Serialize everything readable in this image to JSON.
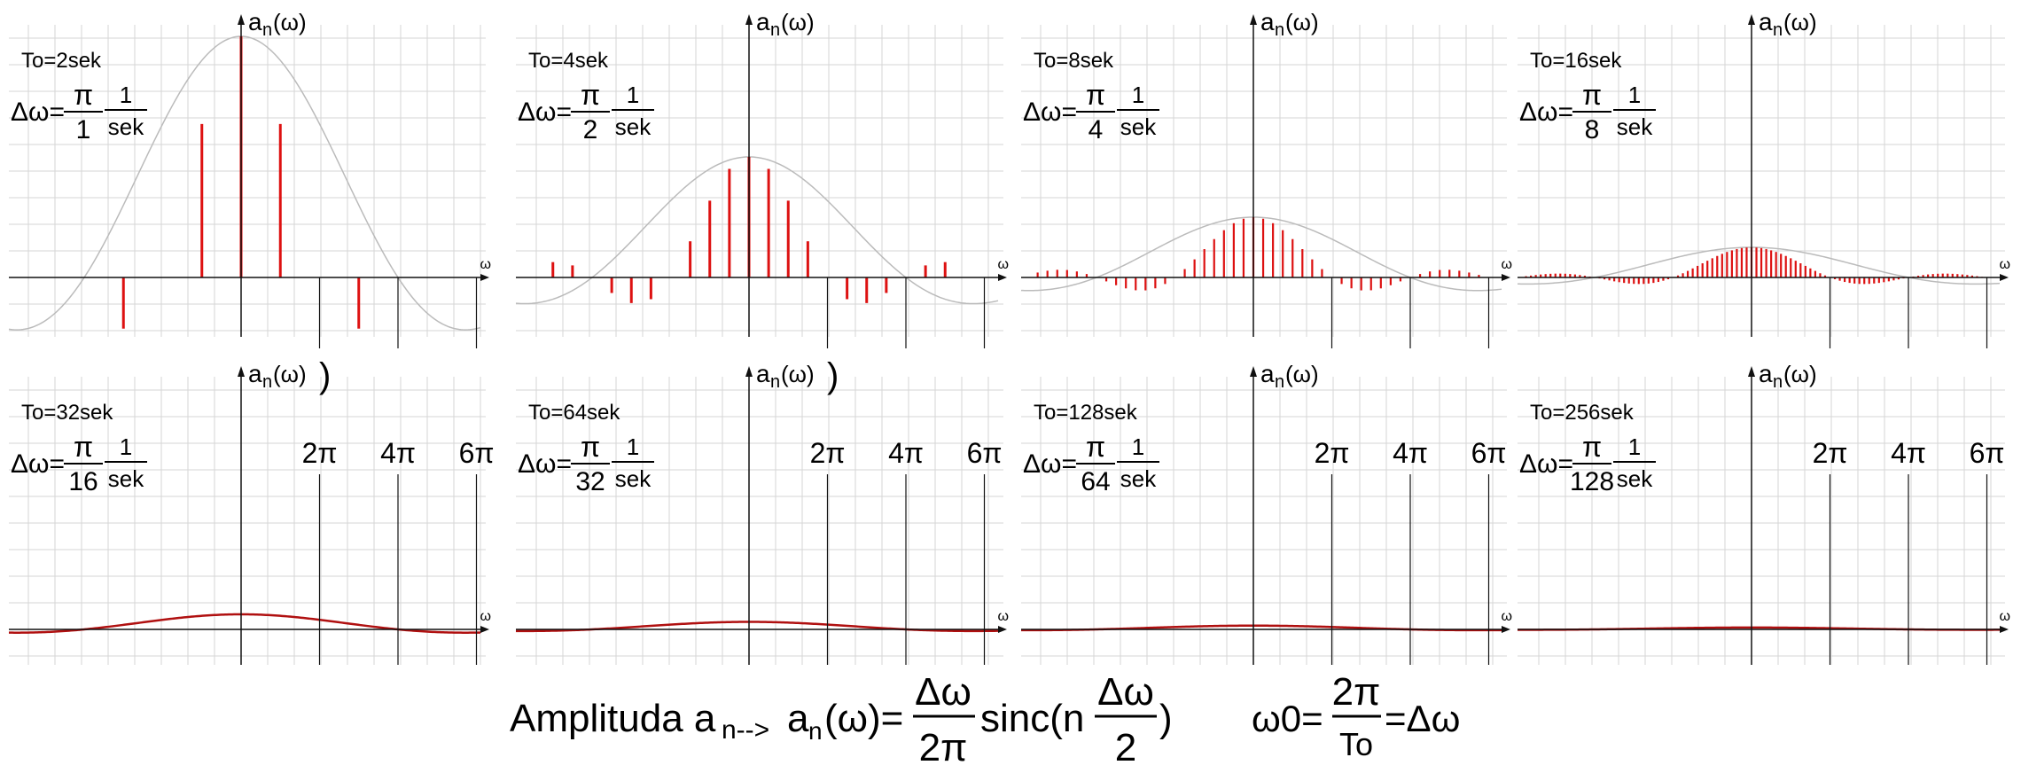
{
  "chart_data": [
    {
      "type": "bar",
      "title": "To=2sek",
      "dw_num": "π",
      "dw_den": "1",
      "dw_unit_num": "1",
      "dw_unit_den": "sek",
      "x_label": "ω",
      "y_label_main": "a",
      "y_label_sub": "n",
      "y_label_tail": "(ω)",
      "n_max": 4,
      "amp": 1.0,
      "stems": true,
      "paren": false
    },
    {
      "type": "bar",
      "title": "To=4sek",
      "dw_num": "π",
      "dw_den": "2",
      "dw_unit_num": "1",
      "dw_unit_den": "sek",
      "x_label": "ω",
      "y_label_main": "a",
      "y_label_sub": "n",
      "y_label_tail": "(ω)",
      "n_max": 10,
      "amp": 0.5,
      "stems": true,
      "paren": false
    },
    {
      "type": "bar",
      "title": "To=8sek",
      "dw_num": "π",
      "dw_den": "4",
      "dw_unit_num": "1",
      "dw_unit_den": "sek",
      "x_label": "ω",
      "y_label_main": "a",
      "y_label_sub": "n",
      "y_label_tail": "(ω)",
      "n_max": 23,
      "amp": 0.25,
      "stems": true,
      "paren": false
    },
    {
      "type": "bar",
      "title": "To=16sek",
      "dw_num": "π",
      "dw_den": "8",
      "dw_unit_num": "1",
      "dw_unit_den": "sek",
      "x_label": "ω",
      "y_label_main": "a",
      "y_label_sub": "n",
      "y_label_tail": "(ω)",
      "n_max": 48,
      "amp": 0.125,
      "stems": true,
      "paren": false
    },
    {
      "type": "line",
      "title": "To=32sek",
      "dw_num": "π",
      "dw_den": "16",
      "dw_unit_num": "1",
      "dw_unit_den": "sek",
      "x_label": "ω",
      "y_label_main": "a",
      "y_label_sub": "n",
      "y_label_tail": "(ω)",
      "amp": 0.0625,
      "stems": false,
      "paren": true,
      "tick_labels": [
        "2π",
        "4π",
        "6π"
      ]
    },
    {
      "type": "line",
      "title": "To=64sek",
      "dw_num": "π",
      "dw_den": "32",
      "dw_unit_num": "1",
      "dw_unit_den": "sek",
      "x_label": "ω",
      "y_label_main": "a",
      "y_label_sub": "n",
      "y_label_tail": "(ω)",
      "amp": 0.03125,
      "stems": false,
      "paren": true,
      "tick_labels": [
        "2π",
        "4π",
        "6π"
      ]
    },
    {
      "type": "line",
      "title": "To=128sek",
      "dw_num": "π",
      "dw_den": "64",
      "dw_unit_num": "1",
      "dw_unit_den": "sek",
      "x_label": "ω",
      "y_label_main": "a",
      "y_label_sub": "n",
      "y_label_tail": "(ω)",
      "amp": 0.015625,
      "stems": false,
      "paren": false,
      "tick_labels": [
        "2π",
        "4π",
        "6π"
      ]
    },
    {
      "type": "line",
      "title": "To=256sek",
      "dw_num": "π",
      "dw_den": "128",
      "dw_unit_num": "1",
      "dw_unit_den": "sek",
      "x_label": "ω",
      "y_label_main": "a",
      "y_label_sub": "n",
      "y_label_tail": "(ω)",
      "amp": 0.0078125,
      "stems": false,
      "paren": false,
      "tick_labels": [
        "2π",
        "4π",
        "6π"
      ]
    }
  ],
  "formula": {
    "label": "Amplituda a",
    "sub1": "n-->",
    "a2": "a",
    "sub2": "n",
    "omega": "(ω)=",
    "frac1_num": "Δω",
    "frac1_den": "2π",
    "sinc": "sinc(n",
    "frac2_num": "Δω",
    "frac2_den": "2",
    "close": ")",
    "w0": "ω0=",
    "frac3_num": "2π",
    "frac3_den": "To",
    "eq": "=Δω"
  },
  "colors": {
    "stem": "#dd1111",
    "curve": "#bbbbbb",
    "axis": "#111111",
    "grid": "#d6d6d6"
  }
}
